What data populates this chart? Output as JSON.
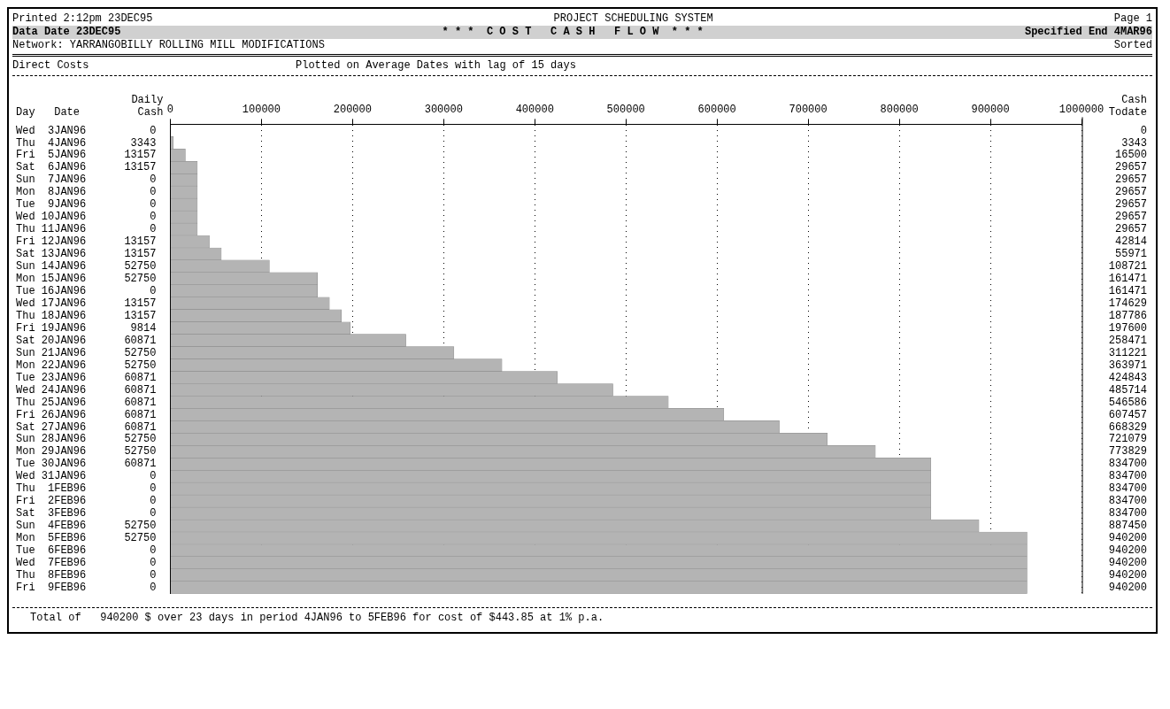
{
  "chart_data": {
    "type": "bar",
    "orientation": "horizontal",
    "title": "* * *  C O S T   C A S H   F L O W  * * *",
    "subtitle": "Plotted on Average Dates with lag of 15 days",
    "ylabel": "Day   Date",
    "annotations": [
      "Printed 2:12pm 23DEC95",
      "PROJECT SCHEDULING SYSTEM",
      "Page 1",
      "Data Date 23DEC95",
      "Specified End 4MAR96",
      "Network: YARRANGOBILLY ROLLING MILL MODIFICATIONS",
      "Sorted",
      "Direct Costs",
      "Total of   940200 $ over 23 days in period 4JAN96 to 5FEB96 for cost of $443.85 at 1% p.a.",
      "Daily Cash"
    ],
    "categories": [
      "Wed  3JAN96          0",
      "Thu  4JAN96       3343",
      "Fri  5JAN96      13157",
      "Sat  6JAN96      13157",
      "Sun  7JAN96          0",
      "Mon  8JAN96          0",
      "Tue  9JAN96          0",
      "Wed 10JAN96          0",
      "Thu 11JAN96          0",
      "Fri 12JAN96      13157",
      "Sat 13JAN96      13157",
      "Sun 14JAN96      52750",
      "Mon 15JAN96      52750",
      "Tue 16JAN96          0",
      "Wed 17JAN96      13157",
      "Thu 18JAN96      13157",
      "Fri 19JAN96       9814",
      "Sat 20JAN96      60871",
      "Sun 21JAN96      52750",
      "Mon 22JAN96      52750",
      "Tue 23JAN96      60871",
      "Wed 24JAN96      60871",
      "Thu 25JAN96      60871",
      "Fri 26JAN96      60871",
      "Sat 27JAN96      60871",
      "Sun 28JAN96      52750",
      "Mon 29JAN96      52750",
      "Tue 30JAN96      60871",
      "Wed 31JAN96          0",
      "Thu  1FEB96          0",
      "Fri  2FEB96          0",
      "Sat  3FEB96          0",
      "Sun  4FEB96      52750",
      "Mon  5FEB96      52750",
      "Tue  6FEB96          0",
      "Wed  7FEB96          0",
      "Thu  8FEB96          0",
      "Fri  9FEB96          0"
    ],
    "series": [
      {
        "name": "Cash Todate",
        "color": "#b4b4b4",
        "values": [
          0,
          3343,
          16500,
          29657,
          29657,
          29657,
          29657,
          29657,
          29657,
          42814,
          55971,
          108721,
          161471,
          161471,
          174629,
          187786,
          197600,
          258471,
          311221,
          363971,
          424843,
          485714,
          546586,
          607457,
          668329,
          721079,
          773829,
          834700,
          834700,
          834700,
          834700,
          834700,
          887450,
          940200,
          940200,
          940200,
          940200,
          940200
        ],
        "value_labels": [
          "0",
          "3343",
          "16500",
          "29657",
          "29657",
          "29657",
          "29657",
          "29657",
          "29657",
          "42814",
          "55971",
          "108721",
          "161471",
          "161471",
          "174629",
          "187786",
          "197600",
          "258471",
          "311221",
          "363971",
          "424843",
          "485714",
          "546586",
          "607457",
          "668329",
          "721079",
          "773829",
          "834700",
          "834700",
          "834700",
          "834700",
          "834700",
          "887450",
          "940200",
          "940200",
          "940200",
          "940200",
          "940200"
        ]
      }
    ],
    "xlim": [
      0,
      1000000
    ],
    "xticks": [
      0,
      100000,
      200000,
      300000,
      400000,
      500000,
      600000,
      700000,
      800000,
      900000,
      1000000
    ],
    "grid": "x",
    "line_style": "dotted",
    "legend": false
  }
}
